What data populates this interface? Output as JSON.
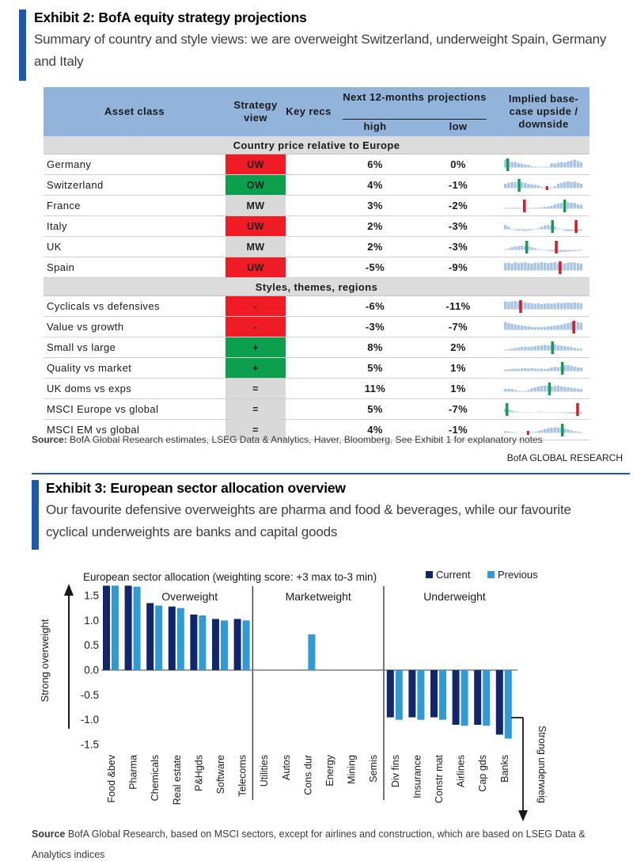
{
  "colors": {
    "accent_blue": "#1f57ab",
    "header_blue": "#92b4da",
    "cell_red": "#ef1c25",
    "cell_green": "#0b9e4d",
    "cell_gray": "#d9d9d9",
    "hist_fill": "#a9c3e2",
    "hist_green": "#169c52",
    "hist_red": "#cf1f27",
    "bar_current": "#12266b",
    "bar_previous": "#2e9bd6"
  },
  "exhibit2": {
    "title": "Exhibit 2: BofA equity strategy projections",
    "subtitle": "Summary of country and style views: we are overweight Switzerland, underweight Spain, Germany and Italy",
    "headers": {
      "asset": "Asset class",
      "view": "Strategy view",
      "key": "Key recs",
      "next12": "Next 12-months projections",
      "high": "high",
      "low": "low",
      "implied": "Implied base-case upside / downside"
    },
    "sections": [
      {
        "label": "Country price relative to Europe",
        "rows": [
          {
            "asset": "Germany",
            "view": "UW",
            "view_type": "red",
            "high": "6%",
            "low": "0%",
            "hist": {
              "green": 0.03,
              "red": null,
              "red_small": false,
              "values": [
                0.9,
                0.7,
                0.6,
                0.65,
                0.5,
                0.45,
                0.35,
                0.3,
                0.15,
                0.1,
                0.05,
                0.05,
                0.1,
                0.08,
                0.5,
                0.45,
                0.55,
                0.6,
                0.55,
                0.7,
                0.8,
                0.9,
                0.75,
                0.6
              ]
            }
          },
          {
            "asset": "Switzerland",
            "view": "OW",
            "view_type": "green",
            "high": "4%",
            "low": "-1%",
            "hist": {
              "green": 0.18,
              "red": 0.55,
              "red_small": true,
              "values": [
                0.5,
                0.6,
                0.7,
                0.65,
                0.8,
                0.7,
                0.6,
                0.5,
                0.45,
                0.4,
                0.3,
                0.15,
                0.1,
                0.05,
                0.1,
                0.2,
                0.5,
                0.6,
                0.7,
                0.8,
                0.7,
                0.75,
                0.6,
                0.5
              ]
            }
          },
          {
            "asset": "France",
            "view": "MW",
            "view_type": "gray",
            "high": "3%",
            "low": "-2%",
            "hist": {
              "green": 0.78,
              "red": 0.25,
              "red_small": false,
              "values": [
                0.1,
                0.08,
                0.1,
                0.12,
                0.1,
                0.08,
                0.06,
                0.05,
                0.08,
                0.1,
                0.12,
                0.15,
                0.2,
                0.25,
                0.35,
                0.5,
                0.6,
                0.65,
                0.7,
                0.75,
                0.7,
                0.65,
                0.5,
                0.45
              ]
            }
          },
          {
            "asset": "Italy",
            "view": "UW",
            "view_type": "red",
            "high": "2%",
            "low": "-3%",
            "hist": {
              "green": 0.62,
              "red": 0.93,
              "red_small": false,
              "values": [
                0.5,
                0.3,
                -0.1,
                -0.2,
                -0.3,
                -0.25,
                -0.35,
                -0.3,
                -0.2,
                -0.1,
                0.1,
                0.3,
                0.45,
                0.5,
                0.4,
                0.3,
                0.1,
                -0.1,
                -0.3,
                -0.4,
                -0.35,
                -0.3,
                -0.4,
                -0.3
              ]
            }
          },
          {
            "asset": "UK",
            "view": "MW",
            "view_type": "gray",
            "high": "2%",
            "low": "-3%",
            "hist": {
              "green": 0.28,
              "red": 0.67,
              "red_small": false,
              "values": [
                0.1,
                0.15,
                0.3,
                0.4,
                0.45,
                0.5,
                0.45,
                0.4,
                0.3,
                0.2,
                0.1,
                0.05,
                -0.1,
                -0.2,
                -0.3,
                -0.35,
                -0.4,
                -0.45,
                -0.4,
                -0.35,
                -0.3,
                -0.25,
                -0.2,
                -0.15
              ]
            }
          },
          {
            "asset": "Spain",
            "view": "UW",
            "view_type": "red",
            "high": "-5%",
            "low": "-9%",
            "hist": {
              "green": null,
              "red": 0.72,
              "red_small": false,
              "values": [
                0.85,
                0.9,
                0.8,
                0.95,
                0.85,
                0.9,
                0.95,
                0.85,
                0.8,
                0.9,
                0.85,
                0.95,
                0.9,
                0.85,
                0.9,
                0.95,
                0.85,
                0.9,
                0.8,
                0.9,
                0.95,
                0.9,
                0.85,
                0.8
              ]
            }
          }
        ]
      },
      {
        "label": "Styles, themes, regions",
        "rows": [
          {
            "asset": "Cyclicals vs defensives",
            "view": "-",
            "view_type": "red",
            "high": "-6%",
            "low": "-11%",
            "hist": {
              "green": null,
              "red": 0.2,
              "red_small": false,
              "values": [
                0.9,
                0.85,
                0.9,
                0.95,
                0.9,
                0.85,
                0.8,
                0.75,
                0.7,
                0.65,
                0.7,
                0.6,
                0.65,
                0.7,
                0.65,
                0.7,
                0.75,
                0.7,
                0.75,
                0.8,
                0.75,
                0.8,
                0.75,
                0.7
              ]
            }
          },
          {
            "asset": "Value vs growth",
            "view": "-",
            "view_type": "red",
            "high": "-3%",
            "low": "-7%",
            "hist": {
              "green": null,
              "red": 0.9,
              "red_small": false,
              "values": [
                0.9,
                0.8,
                0.7,
                0.6,
                0.55,
                0.5,
                0.45,
                0.4,
                0.35,
                0.3,
                0.35,
                0.3,
                0.35,
                0.4,
                0.45,
                0.5,
                0.55,
                0.6,
                0.7,
                0.8,
                0.9,
                0.95,
                0.9,
                0.85
              ]
            }
          },
          {
            "asset": "Small vs large",
            "view": "+",
            "view_type": "green",
            "high": "8%",
            "low": "2%",
            "hist": {
              "green": 0.62,
              "red": null,
              "red_small": false,
              "values": [
                0.1,
                0.15,
                0.2,
                0.3,
                0.35,
                0.4,
                0.45,
                0.4,
                0.45,
                0.5,
                0.55,
                0.6,
                0.65,
                0.6,
                0.65,
                0.7,
                0.6,
                0.55,
                0.5,
                0.45,
                0.4,
                0.3,
                0.25,
                0.2
              ]
            }
          },
          {
            "asset": "Quality vs market",
            "view": "+",
            "view_type": "green",
            "high": "5%",
            "low": "1%",
            "hist": {
              "green": 0.75,
              "red": null,
              "red_small": false,
              "values": [
                0.15,
                0.2,
                0.25,
                0.3,
                0.25,
                0.3,
                0.35,
                0.3,
                0.35,
                0.3,
                0.25,
                0.3,
                0.25,
                0.3,
                0.4,
                0.5,
                0.45,
                0.55,
                0.65,
                0.7,
                0.6,
                0.5,
                0.45,
                0.4
              ]
            }
          },
          {
            "asset": "UK doms vs exps",
            "view": "=",
            "view_type": "gray",
            "high": "11%",
            "low": "1%",
            "hist": {
              "green": 0.58,
              "red": null,
              "red_small": false,
              "values": [
                0.3,
                0.35,
                0.3,
                0.2,
                0.1,
                0.05,
                0.1,
                0.2,
                0.4,
                0.5,
                0.6,
                0.65,
                0.7,
                0.65,
                0.6,
                0.65,
                0.7,
                0.6,
                0.55,
                0.5,
                0.45,
                0.4,
                0.35,
                0.3
              ]
            }
          },
          {
            "asset": "MSCI Europe vs global",
            "view": "=",
            "view_type": "gray",
            "high": "5%",
            "low": "-7%",
            "hist": {
              "green": 0.02,
              "red": 0.95,
              "red_small": false,
              "values": [
                0.4,
                0.3,
                0.2,
                0.1,
                0.05,
                -0.05,
                -0.1,
                -0.1,
                -0.05,
                -0.05,
                0.0,
                0.0,
                -0.05,
                -0.05,
                -0.1,
                -0.1,
                -0.05,
                -0.1,
                -0.15,
                -0.2,
                -0.25,
                -0.3,
                -0.35,
                -0.3
              ]
            }
          },
          {
            "asset": "MSCI EM vs global",
            "view": "=",
            "view_type": "gray",
            "high": "4%",
            "low": "-1%",
            "hist": {
              "green": 0.75,
              "red": 0.3,
              "red_small": true,
              "values": [
                0.2,
                0.15,
                0.1,
                0.05,
                -0.05,
                -0.1,
                -0.05,
                0.0,
                0.05,
                0.1,
                0.2,
                0.3,
                0.45,
                0.55,
                0.6,
                0.65,
                0.6,
                0.55,
                0.5,
                0.4,
                0.3,
                0.2,
                0.15,
                0.1
              ]
            }
          }
        ]
      }
    ],
    "source_label": "Source:",
    "source_text": "BofA Global Research estimates, LSEG Data & Analytics, Haver, Bloomberg. See Exhibit 1 for explanatory notes",
    "brand": "BofA GLOBAL RESEARCH"
  },
  "exhibit3": {
    "title": "Exhibit 3: European sector allocation overview",
    "subtitle": "Our favourite defensive overweights are pharma and food & beverages, while our favourite cyclical underweights are banks and capital goods",
    "source_label": "Source",
    "source_text": "BofA Global Research, based on MSCI sectors, except for airlines and construction, which are based on LSEG Data & Analytics indices"
  },
  "chart_data": {
    "type": "bar",
    "title": "European sector allocation (weighting score: +3 max to-3 min)",
    "legend": [
      "Current",
      "Previous"
    ],
    "legend_position": "top-right",
    "groups": [
      "Overweight",
      "Marketweight",
      "Underweight"
    ],
    "group_boundaries": [
      7,
      13
    ],
    "ylabel_left": "Strong overweight",
    "ylabel_right": "Strong underweig",
    "yticks": [
      "1.5",
      "1.0",
      "0.5",
      "0.0",
      "-0.5",
      "-1.0",
      "-1.5"
    ],
    "ylim": [
      -1.75,
      1.85
    ],
    "grid": false,
    "categories": [
      "Food &bev",
      "Pharma",
      "Chemicals",
      "Real estate",
      "P&Hgds",
      "Software",
      "Telecoms",
      "Utilities",
      "Autos",
      "Cons dur",
      "Energy",
      "Mining",
      "Semis",
      "Div fins",
      "Insurance",
      "Constr mat",
      "Airlines",
      "Cap gds",
      "Banks"
    ],
    "series": [
      {
        "name": "Current",
        "values": [
          1.7,
          1.7,
          1.35,
          1.28,
          1.12,
          1.03,
          1.03,
          null,
          null,
          null,
          null,
          null,
          null,
          -0.95,
          -0.95,
          -0.95,
          -1.1,
          -1.1,
          -1.3
        ]
      },
      {
        "name": "Previous",
        "values": [
          1.7,
          1.68,
          1.3,
          1.25,
          1.1,
          1.0,
          1.0,
          null,
          null,
          0.72,
          null,
          null,
          null,
          -1.0,
          -1.0,
          -1.0,
          -1.12,
          -1.12,
          -1.38
        ]
      }
    ]
  }
}
